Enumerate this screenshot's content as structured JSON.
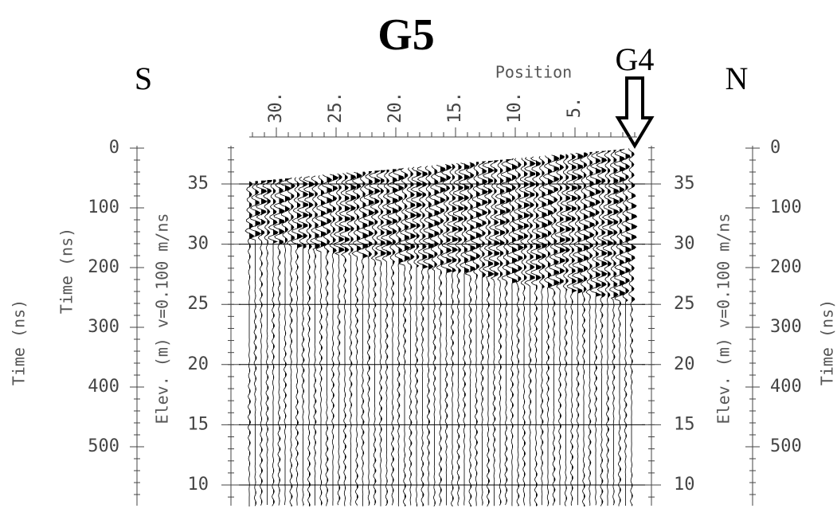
{
  "title": "G5",
  "labels": {
    "south": "S",
    "north": "N",
    "marker": "G4"
  },
  "position_axis": {
    "label": "Position",
    "ticks": [
      {
        "value": 30,
        "label": "30."
      },
      {
        "value": 25,
        "label": "25."
      },
      {
        "value": 20,
        "label": "20."
      },
      {
        "value": 15,
        "label": "15."
      },
      {
        "value": 10,
        "label": "10."
      },
      {
        "value": 5,
        "label": "5."
      }
    ]
  },
  "time_axis": {
    "label": "Time (ns)",
    "ticks": [
      0,
      100,
      200,
      300,
      400,
      500
    ]
  },
  "elevation_axis": {
    "label": "Elev. (m) v=0.100 m/ns",
    "ticks": [
      35,
      30,
      25,
      20,
      15,
      10
    ]
  }
}
